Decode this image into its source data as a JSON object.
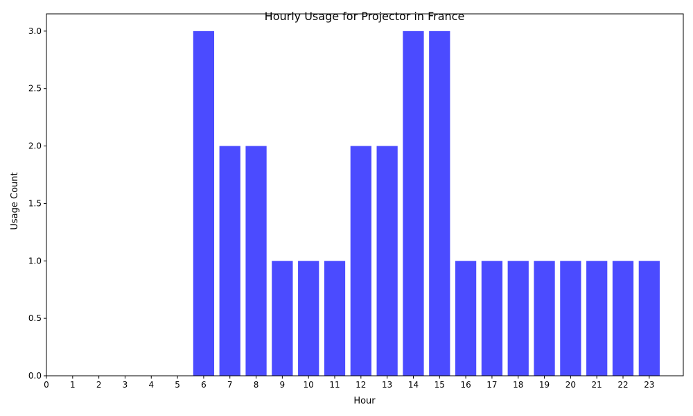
{
  "chart_data": {
    "type": "bar",
    "title": "Hourly Usage for Projector in France",
    "xlabel": "Hour",
    "ylabel": "Usage Count",
    "categories": [
      "6",
      "7",
      "8",
      "9",
      "10",
      "11",
      "12",
      "13",
      "14",
      "15",
      "16",
      "17",
      "18",
      "19",
      "20",
      "21",
      "22",
      "23"
    ],
    "values": [
      3,
      2,
      2,
      1,
      1,
      1,
      2,
      2,
      3,
      3,
      1,
      1,
      1,
      1,
      1,
      1,
      1,
      1
    ],
    "x_ticks": [
      0,
      1,
      2,
      3,
      4,
      5,
      6,
      7,
      8,
      9,
      10,
      11,
      12,
      13,
      14,
      15,
      16,
      17,
      18,
      19,
      20,
      21,
      22,
      23
    ],
    "y_ticks": [
      0.0,
      0.5,
      1.0,
      1.5,
      2.0,
      2.5,
      3.0
    ],
    "xlim": [
      0,
      24.3
    ],
    "ylim": [
      0,
      3.15
    ],
    "bar_color": "#4b4bff",
    "grid": false,
    "legend": "none"
  }
}
